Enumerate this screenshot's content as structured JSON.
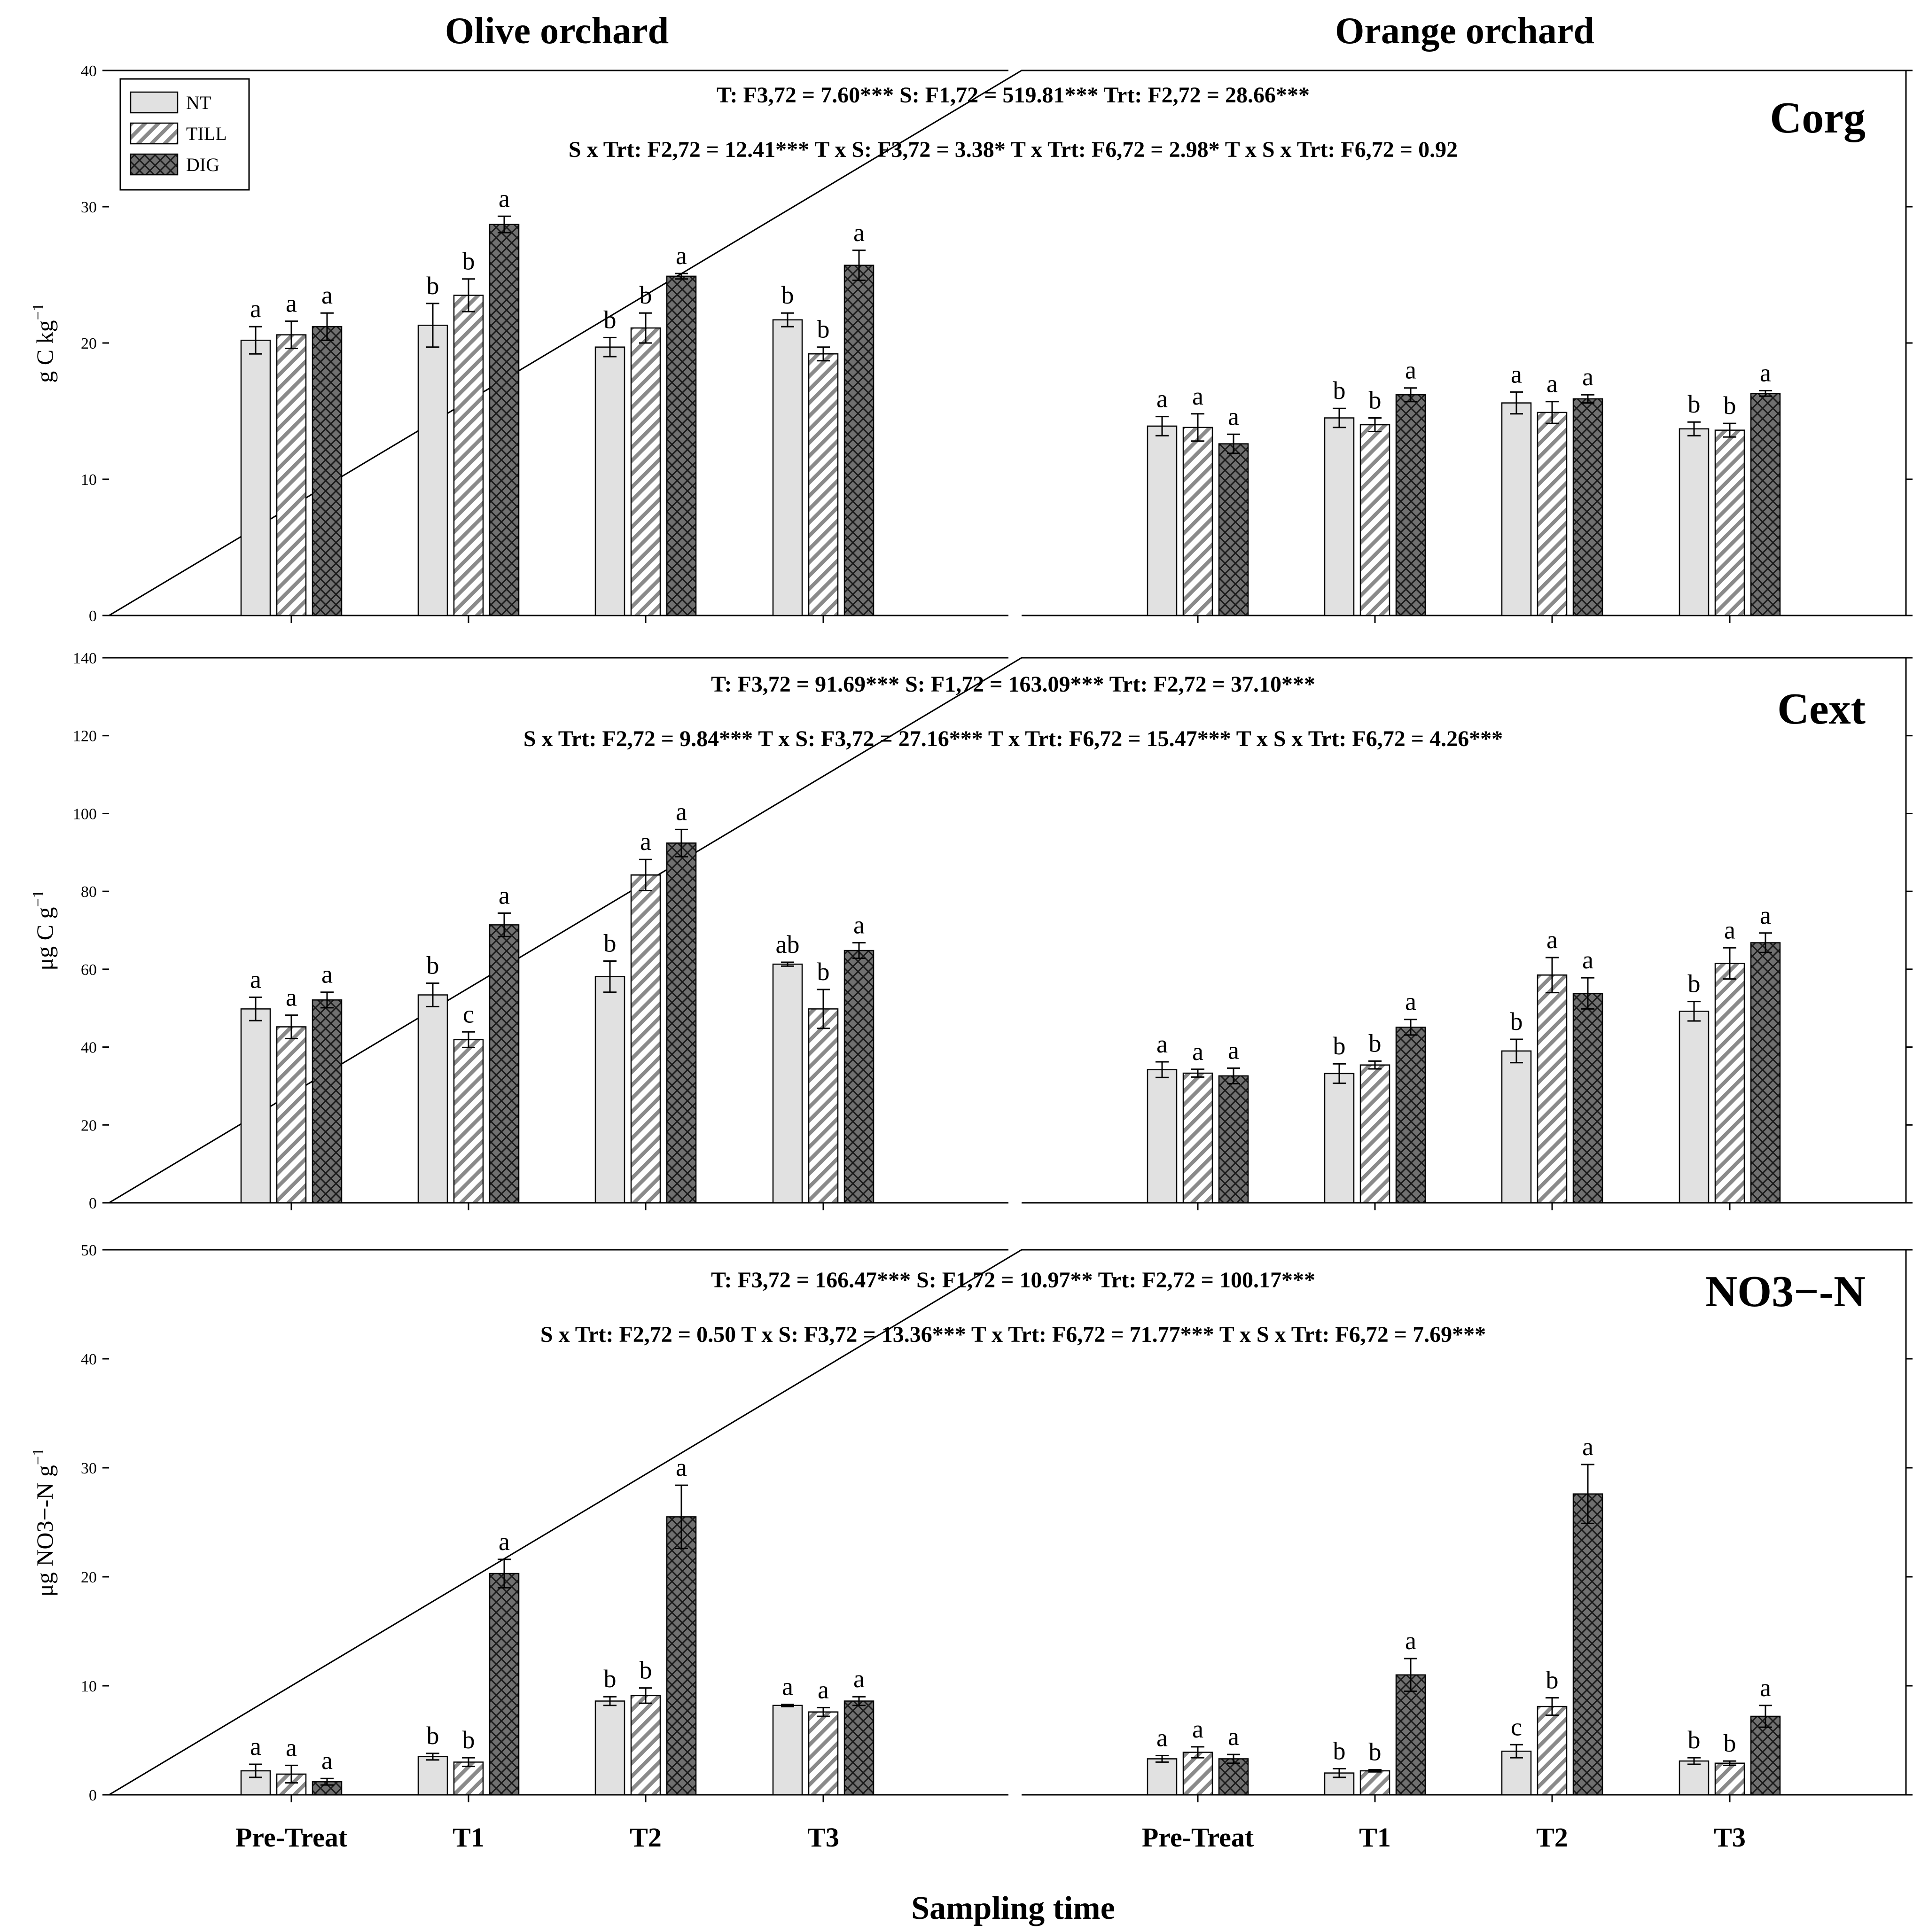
{
  "chart_data": {
    "type": "bar",
    "orchards": [
      "Olive orchard",
      "Orange orchard"
    ],
    "categories": [
      "Pre-Treat",
      "T1",
      "T2",
      "T3"
    ],
    "treatments": [
      "NT",
      "TILL",
      "DIG"
    ],
    "xlabel": "Sampling time",
    "legend": {
      "placement": "top-left",
      "entries": [
        "NT",
        "TILL",
        "DIG"
      ]
    },
    "panels": [
      {
        "name": "Corg",
        "ylabel": "g C kg",
        "ylabel_sup": "−1",
        "ylim": [
          0,
          40
        ],
        "yticks": [
          0,
          10,
          20,
          30,
          40
        ],
        "stats_line1": "T: F3,72 = 7.60***   S: F1,72 = 519.81***   Trt: F2,72 = 28.66***",
        "stats_line2": "S x Trt: F2,72 = 12.41***   T x S: F3,72 = 3.38*   T x Trt: F6,72 = 2.98*  T x S x Trt: F6,72 = 0.92",
        "groups": {
          "Olive orchard": [
            {
              "values": [
                20.2,
                20.6,
                21.2
              ],
              "errors": [
                1.0,
                1.0,
                1.0
              ],
              "letters": [
                "a",
                "a",
                "a"
              ]
            },
            {
              "values": [
                21.3,
                23.5,
                28.7
              ],
              "errors": [
                1.6,
                1.2,
                0.6
              ],
              "letters": [
                "b",
                "b",
                "a"
              ]
            },
            {
              "values": [
                19.7,
                21.1,
                24.9
              ],
              "errors": [
                0.7,
                1.1,
                0.2
              ],
              "letters": [
                "b",
                "b",
                "a"
              ]
            },
            {
              "values": [
                21.7,
                19.2,
                25.7
              ],
              "errors": [
                0.5,
                0.5,
                1.1
              ],
              "letters": [
                "b",
                "b",
                "a"
              ]
            }
          ],
          "Orange orchard": [
            {
              "values": [
                13.9,
                13.8,
                12.6
              ],
              "errors": [
                0.7,
                1.0,
                0.7
              ],
              "letters": [
                "a",
                "a",
                "a"
              ]
            },
            {
              "values": [
                14.5,
                14.0,
                16.2
              ],
              "errors": [
                0.7,
                0.5,
                0.5
              ],
              "letters": [
                "b",
                "b",
                "a"
              ]
            },
            {
              "values": [
                15.6,
                14.9,
                15.9
              ],
              "errors": [
                0.8,
                0.8,
                0.3
              ],
              "letters": [
                "a",
                "a",
                "a"
              ]
            },
            {
              "values": [
                13.7,
                13.6,
                16.3
              ],
              "errors": [
                0.5,
                0.5,
                0.2
              ],
              "letters": [
                "b",
                "b",
                "a"
              ]
            }
          ]
        }
      },
      {
        "name": "Cext",
        "ylabel": "μg C g",
        "ylabel_sup": "−1",
        "ylim": [
          0,
          140
        ],
        "yticks": [
          0,
          20,
          40,
          60,
          80,
          100,
          120,
          140
        ],
        "stats_line1": "T: F3,72 = 91.69***   S: F1,72 = 163.09***   Trt: F2,72 = 37.10***",
        "stats_line2": "S x Trt: F2,72 = 9.84***   T x S: F3,72 = 27.16***   T x Trt: F6,72 = 15.47*** T x S x Trt: F6,72 = 4.26***",
        "groups": {
          "Olive orchard": [
            {
              "values": [
                49.8,
                45.2,
                52.1
              ],
              "errors": [
                3.0,
                3.0,
                2.0
              ],
              "letters": [
                "a",
                "a",
                "a"
              ]
            },
            {
              "values": [
                53.4,
                41.9,
                71.4
              ],
              "errors": [
                3.0,
                2.0,
                3.0
              ],
              "letters": [
                "b",
                "c",
                "a"
              ]
            },
            {
              "values": [
                58.1,
                84.2,
                92.4
              ],
              "errors": [
                4.0,
                4.0,
                3.5
              ],
              "letters": [
                "b",
                "a",
                "a"
              ]
            },
            {
              "values": [
                61.3,
                49.8,
                64.8
              ],
              "errors": [
                0.5,
                5.0,
                2.0
              ],
              "letters": [
                "ab",
                "b",
                "a"
              ]
            }
          ],
          "Orange orchard": [
            {
              "values": [
                34.2,
                33.3,
                32.6
              ],
              "errors": [
                2.0,
                1.0,
                2.0
              ],
              "letters": [
                "a",
                "a",
                "a"
              ]
            },
            {
              "values": [
                33.2,
                35.4,
                45.1
              ],
              "errors": [
                2.5,
                1.0,
                2.0
              ],
              "letters": [
                "b",
                "b",
                "a"
              ]
            },
            {
              "values": [
                39.0,
                58.5,
                53.8
              ],
              "errors": [
                3.0,
                4.5,
                4.0
              ],
              "letters": [
                "b",
                "a",
                "a"
              ]
            },
            {
              "values": [
                49.2,
                61.5,
                66.8
              ],
              "errors": [
                2.5,
                4.0,
                2.5
              ],
              "letters": [
                "b",
                "a",
                "a"
              ]
            }
          ]
        }
      },
      {
        "name": "NO3−-N",
        "ylabel": "μg NO3−-N g",
        "ylabel_sup": "−1",
        "ylim": [
          0,
          50
        ],
        "yticks": [
          0,
          10,
          20,
          30,
          40,
          50
        ],
        "stats_line1": "T: F3,72 = 166.47***   S: F1,72 = 10.97**   Trt: F2,72 = 100.17***",
        "stats_line2": "S x Trt: F2,72 = 0.50   T x S: F3,72 = 13.36***   T x Trt: F6,72 = 71.77*** T x S x Trt: F6,72 = 7.69***",
        "groups": {
          "Olive orchard": [
            {
              "values": [
                2.2,
                1.9,
                1.2
              ],
              "errors": [
                0.6,
                0.8,
                0.3
              ],
              "letters": [
                "a",
                "a",
                "a"
              ]
            },
            {
              "values": [
                3.5,
                3.0,
                20.3
              ],
              "errors": [
                0.3,
                0.4,
                1.3
              ],
              "letters": [
                "b",
                "b",
                "a"
              ]
            },
            {
              "values": [
                8.6,
                9.1,
                25.5
              ],
              "errors": [
                0.4,
                0.7,
                2.9
              ],
              "letters": [
                "b",
                "b",
                "a"
              ]
            },
            {
              "values": [
                8.2,
                7.6,
                8.6
              ],
              "errors": [
                0.1,
                0.4,
                0.4
              ],
              "letters": [
                "a",
                "a",
                "a"
              ]
            }
          ],
          "Orange orchard": [
            {
              "values": [
                3.3,
                3.9,
                3.3
              ],
              "errors": [
                0.3,
                0.5,
                0.4
              ],
              "letters": [
                "a",
                "a",
                "a"
              ]
            },
            {
              "values": [
                2.0,
                2.2,
                11.0
              ],
              "errors": [
                0.4,
                0.1,
                1.5
              ],
              "letters": [
                "b",
                "b",
                "a"
              ]
            },
            {
              "values": [
                4.0,
                8.1,
                27.6
              ],
              "errors": [
                0.6,
                0.8,
                2.7
              ],
              "letters": [
                "c",
                "b",
                "a"
              ]
            },
            {
              "values": [
                3.1,
                2.9,
                7.2
              ],
              "errors": [
                0.3,
                0.2,
                1.0
              ],
              "letters": [
                "b",
                "b",
                "a"
              ]
            }
          ]
        }
      }
    ]
  }
}
